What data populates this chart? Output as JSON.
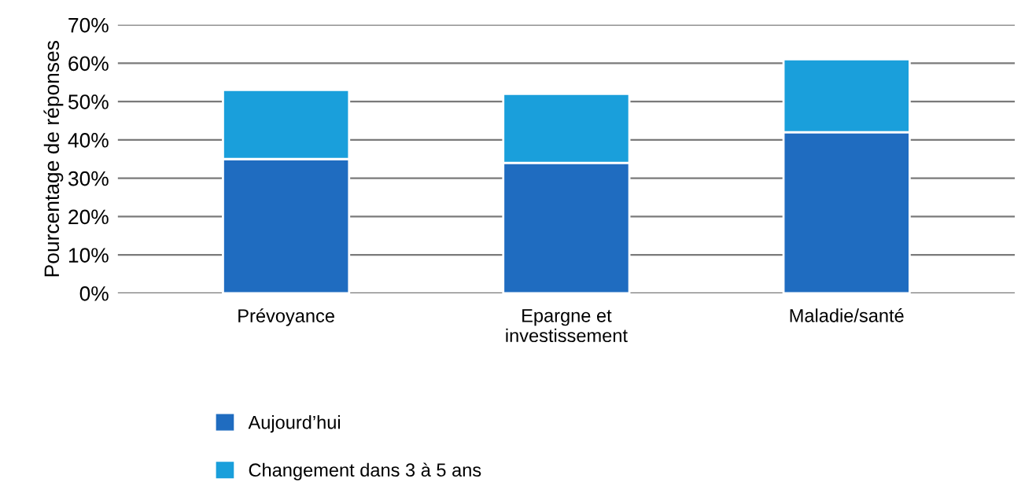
{
  "chart_data": {
    "type": "bar",
    "stacked": true,
    "ylabel": "Pourcentage de réponses",
    "categories": [
      "Prévoyance",
      "Epargne et\ninvestissement",
      "Maladie/santé"
    ],
    "series": [
      {
        "name": "Aujourd’hui",
        "color": "#1f6cc0",
        "values": [
          35,
          34,
          42
        ]
      },
      {
        "name": "Changement dans 3 à 5 ans",
        "color": "#1a9fdb",
        "values": [
          18,
          18,
          19
        ]
      }
    ],
    "ylim": [
      0,
      70
    ],
    "yticks": [
      {
        "value": 0,
        "label": "0%"
      },
      {
        "value": 10,
        "label": "10%"
      },
      {
        "value": 20,
        "label": "20%"
      },
      {
        "value": 30,
        "label": "30%"
      },
      {
        "value": 40,
        "label": "40%"
      },
      {
        "value": 50,
        "label": "50%"
      },
      {
        "value": 60,
        "label": "60%"
      },
      {
        "value": 70,
        "label": "70%"
      }
    ],
    "grid": "y",
    "legend": "bottom left"
  }
}
